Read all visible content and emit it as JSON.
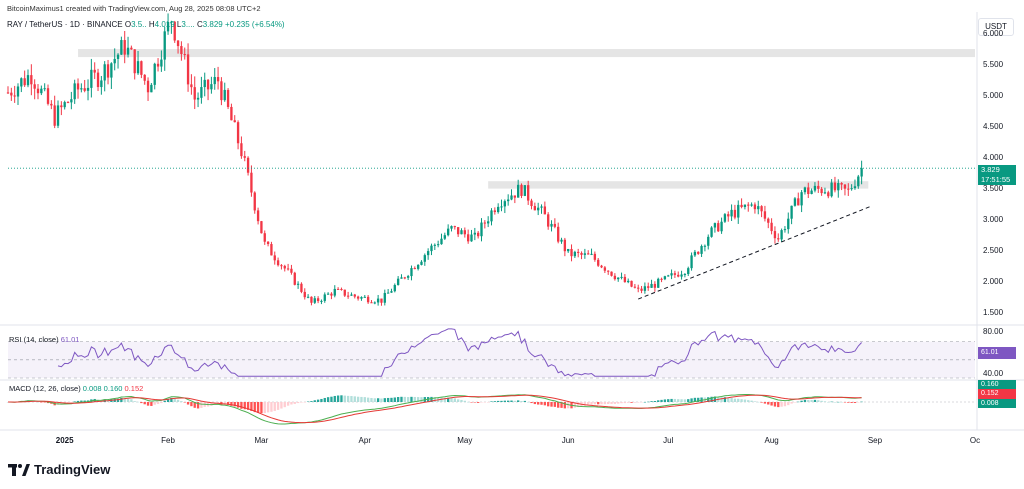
{
  "header": {
    "byline": "BitcoinMaximus1 created with TradingView.com, Aug 28, 2025 08:08 UTC+2",
    "symbol": "RAY / TetherUS · 1D · BINANCE",
    "o_key": "O",
    "o_val": "3.5..",
    "h_key": "H",
    "h_val": "4.019",
    "l_key": "L",
    "l_val": "3....",
    "c_key": "C",
    "c_val": "3.829",
    "change": "+0.235 (+6.54%)"
  },
  "currency_label": "USDT",
  "price_axis_ticks": [
    "6.000",
    "5.500",
    "5.000",
    "4.500",
    "4.000",
    "3.500",
    "3.000",
    "2.500",
    "2.000",
    "1.500"
  ],
  "last_price": {
    "value": "3.829",
    "countdown": "17:51:55",
    "color": "#089981"
  },
  "time_axis": [
    {
      "label": "2025",
      "bold": true
    },
    {
      "label": "Feb",
      "bold": false
    },
    {
      "label": "Mar",
      "bold": false
    },
    {
      "label": "Apr",
      "bold": false
    },
    {
      "label": "May",
      "bold": false
    },
    {
      "label": "Jun",
      "bold": false
    },
    {
      "label": "Jul",
      "bold": false
    },
    {
      "label": "Aug",
      "bold": false
    },
    {
      "label": "Sep",
      "bold": false
    },
    {
      "label": "Oc",
      "bold": false
    }
  ],
  "rsi": {
    "label": "RSI (14, close)",
    "value": "61.01",
    "ticks": [
      "80.00",
      "40.00"
    ],
    "color": "#7e57c2"
  },
  "macd": {
    "label": "MACD (12, 26, close)",
    "v1": "0.008",
    "v2": "0.160",
    "v3": "0.152",
    "tag_top": "0.160",
    "tag_mid": "0.152",
    "tag_bot": "0.008"
  },
  "branding": "TradingView",
  "colors": {
    "up": "#089981",
    "down": "#f23645",
    "rsi": "#7e57c2",
    "macd_line": "#4caf50",
    "signal_line": "#e53935",
    "zone": "#dcdcdc"
  },
  "chart_data": {
    "type": "candlestick",
    "title": "RAY / TetherUS · 1D · BINANCE",
    "interval": "1D",
    "ylim": [
      1.35,
      6.25
    ],
    "x_range": [
      "2024-12-15",
      "2025-10-01"
    ],
    "resistance_zones": [
      {
        "from": "2025-01-05",
        "to": "2025-10-01",
        "low": 5.62,
        "high": 5.75
      },
      {
        "from": "2025-05-08",
        "to": "2025-08-30",
        "low": 3.5,
        "high": 3.62
      }
    ],
    "trendline": {
      "from": {
        "date": "2025-06-22",
        "price": 1.72
      },
      "to": {
        "date": "2025-08-31",
        "price": 3.22
      },
      "style": "dashed"
    },
    "last_price_line": 3.829,
    "close_path": [
      [
        "2024-12-15",
        5.05
      ],
      [
        "2024-12-22",
        5.35
      ],
      [
        "2024-12-29",
        4.65
      ],
      [
        "2025-01-05",
        5.1
      ],
      [
        "2025-01-12",
        5.35
      ],
      [
        "2025-01-19",
        5.8
      ],
      [
        "2025-01-26",
        5.15
      ],
      [
        "2025-02-02",
        6.25
      ],
      [
        "2025-02-09",
        4.95
      ],
      [
        "2025-02-16",
        5.25
      ],
      [
        "2025-02-23",
        4.1
      ],
      [
        "2025-03-02",
        2.6
      ],
      [
        "2025-03-09",
        2.15
      ],
      [
        "2025-03-16",
        1.65
      ],
      [
        "2025-03-23",
        1.85
      ],
      [
        "2025-03-30",
        1.75
      ],
      [
        "2025-04-06",
        1.7
      ],
      [
        "2025-04-13",
        2.1
      ],
      [
        "2025-04-20",
        2.5
      ],
      [
        "2025-04-27",
        2.85
      ],
      [
        "2025-05-04",
        2.7
      ],
      [
        "2025-05-11",
        3.3
      ],
      [
        "2025-05-18",
        3.5
      ],
      [
        "2025-05-25",
        3.05
      ],
      [
        "2025-06-01",
        2.45
      ],
      [
        "2025-06-08",
        2.4
      ],
      [
        "2025-06-15",
        2.1
      ],
      [
        "2025-06-22",
        1.85
      ],
      [
        "2025-06-29",
        2.0
      ],
      [
        "2025-07-06",
        2.2
      ],
      [
        "2025-07-13",
        2.75
      ],
      [
        "2025-07-20",
        3.1
      ],
      [
        "2025-07-27",
        3.25
      ],
      [
        "2025-08-03",
        2.7
      ],
      [
        "2025-08-10",
        3.45
      ],
      [
        "2025-08-17",
        3.5
      ],
      [
        "2025-08-24",
        3.45
      ],
      [
        "2025-08-28",
        3.829
      ]
    ],
    "rsi_range": [
      30,
      85
    ],
    "rsi_levels": [
      70,
      50,
      30
    ]
  }
}
